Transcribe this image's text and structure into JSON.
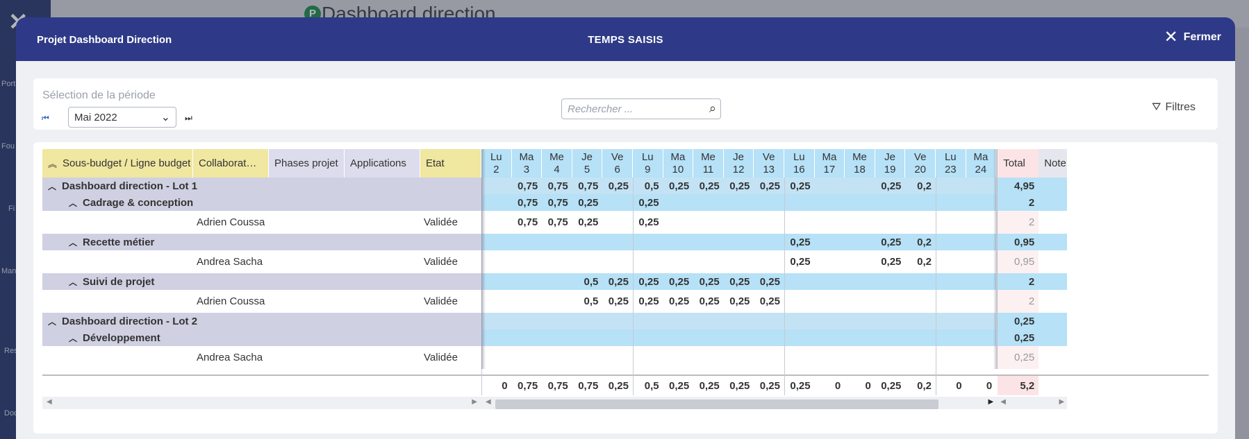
{
  "background": {
    "page_title": "Dashboard direction",
    "page_badge": "P",
    "nav_labels": [
      "Port",
      "Fou",
      "Fi",
      "Man",
      "Res",
      "Doc"
    ]
  },
  "modal": {
    "left_title": "Projet Dashboard Direction",
    "center_title": "TEMPS SAISIS",
    "close_label": "Fermer"
  },
  "filters": {
    "period_label": "Sélection de la période",
    "period_value": "Mai 2022",
    "search_placeholder": "Rechercher ...",
    "filters_label": "Filtres"
  },
  "table": {
    "fixed_headers": [
      "Sous-budget / Ligne budget",
      "Collaborat…",
      "Phases projet",
      "Applications",
      "Etat"
    ],
    "days": [
      {
        "d": "Lu",
        "n": "2"
      },
      {
        "d": "Ma",
        "n": "3"
      },
      {
        "d": "Me",
        "n": "4"
      },
      {
        "d": "Je",
        "n": "5"
      },
      {
        "d": "Ve",
        "n": "6"
      },
      {
        "d": "Lu",
        "n": "9"
      },
      {
        "d": "Ma",
        "n": "10"
      },
      {
        "d": "Me",
        "n": "11"
      },
      {
        "d": "Je",
        "n": "12"
      },
      {
        "d": "Ve",
        "n": "13"
      },
      {
        "d": "Lu",
        "n": "16"
      },
      {
        "d": "Ma",
        "n": "17"
      },
      {
        "d": "Me",
        "n": "18"
      },
      {
        "d": "Je",
        "n": "19"
      },
      {
        "d": "Ve",
        "n": "20"
      },
      {
        "d": "Lu",
        "n": "23"
      },
      {
        "d": "Ma",
        "n": "24"
      }
    ],
    "total_header": "Total",
    "note_header": "Note",
    "rows": [
      {
        "type": "lot",
        "label": "Dashboard direction - Lot 1",
        "collab": "",
        "etat": "",
        "values": [
          "",
          "0,75",
          "0,75",
          "0,75",
          "0,25",
          "0,5",
          "0,25",
          "0,25",
          "0,25",
          "0,25",
          "0,25",
          "",
          "",
          "0,25",
          "0,2",
          "",
          ""
        ],
        "total": "4,95"
      },
      {
        "type": "sub",
        "label": "Cadrage & conception",
        "collab": "",
        "etat": "",
        "values": [
          "",
          "0,75",
          "0,75",
          "0,25",
          "",
          "0,25",
          "",
          "",
          "",
          "",
          "",
          "",
          "",
          "",
          "",
          "",
          ""
        ],
        "total": "2"
      },
      {
        "type": "line",
        "label": "",
        "collab": "Adrien Coussa",
        "etat": "Validée",
        "values": [
          "",
          "0,75",
          "0,75",
          "0,25",
          "",
          "0,25",
          "",
          "",
          "",
          "",
          "",
          "",
          "",
          "",
          "",
          "",
          ""
        ],
        "total": "2"
      },
      {
        "type": "sub",
        "label": "Recette métier",
        "collab": "",
        "etat": "",
        "values": [
          "",
          "",
          "",
          "",
          "",
          "",
          "",
          "",
          "",
          "",
          "0,25",
          "",
          "",
          "0,25",
          "0,2",
          "",
          ""
        ],
        "total": "0,95"
      },
      {
        "type": "line",
        "label": "",
        "collab": "Andrea Sacha",
        "etat": "Validée",
        "values": [
          "",
          "",
          "",
          "",
          "",
          "",
          "",
          "",
          "",
          "",
          "0,25",
          "",
          "",
          "0,25",
          "0,2",
          "",
          ""
        ],
        "total": "0,95"
      },
      {
        "type": "sub",
        "label": "Suivi de projet",
        "collab": "",
        "etat": "",
        "values": [
          "",
          "",
          "",
          "0,5",
          "0,25",
          "0,25",
          "0,25",
          "0,25",
          "0,25",
          "0,25",
          "",
          "",
          "",
          "",
          "",
          "",
          ""
        ],
        "total": "2"
      },
      {
        "type": "line",
        "label": "",
        "collab": "Adrien Coussa",
        "etat": "Validée",
        "values": [
          "",
          "",
          "",
          "0,5",
          "0,25",
          "0,25",
          "0,25",
          "0,25",
          "0,25",
          "0,25",
          "",
          "",
          "",
          "",
          "",
          "",
          ""
        ],
        "total": "2"
      },
      {
        "type": "lot",
        "label": "Dashboard direction - Lot 2",
        "collab": "",
        "etat": "",
        "values": [
          "",
          "",
          "",
          "",
          "",
          "",
          "",
          "",
          "",
          "",
          "",
          "",
          "",
          "",
          "",
          "",
          ""
        ],
        "total": "0,25"
      },
      {
        "type": "sub",
        "label": "Développement",
        "collab": "",
        "etat": "",
        "values": [
          "",
          "",
          "",
          "",
          "",
          "",
          "",
          "",
          "",
          "",
          "",
          "",
          "",
          "",
          "",
          "",
          ""
        ],
        "total": "0,25"
      },
      {
        "type": "line",
        "label": "",
        "collab": "Andrea Sacha",
        "etat": "Validée",
        "values": [
          "",
          "",
          "",
          "",
          "",
          "",
          "",
          "",
          "",
          "",
          "",
          "",
          "",
          "",
          "",
          "",
          ""
        ],
        "total": "0,25"
      }
    ],
    "footer": {
      "values": [
        "0",
        "0,75",
        "0,75",
        "0,75",
        "0,25",
        "0,5",
        "0,25",
        "0,25",
        "0,25",
        "0,25",
        "0,25",
        "0",
        "0",
        "0,25",
        "0,2",
        "0",
        "0"
      ],
      "total": "5,2"
    }
  },
  "colors": {
    "header_blue": "#2e3a87",
    "fixed_header_yellow": "#f0e7a0",
    "phase_header_lilac": "#dcdcec",
    "day_header_blue": "#b6e1f7",
    "group_lilac": "#cfd0e2",
    "total_pink": "#fce4e6"
  }
}
